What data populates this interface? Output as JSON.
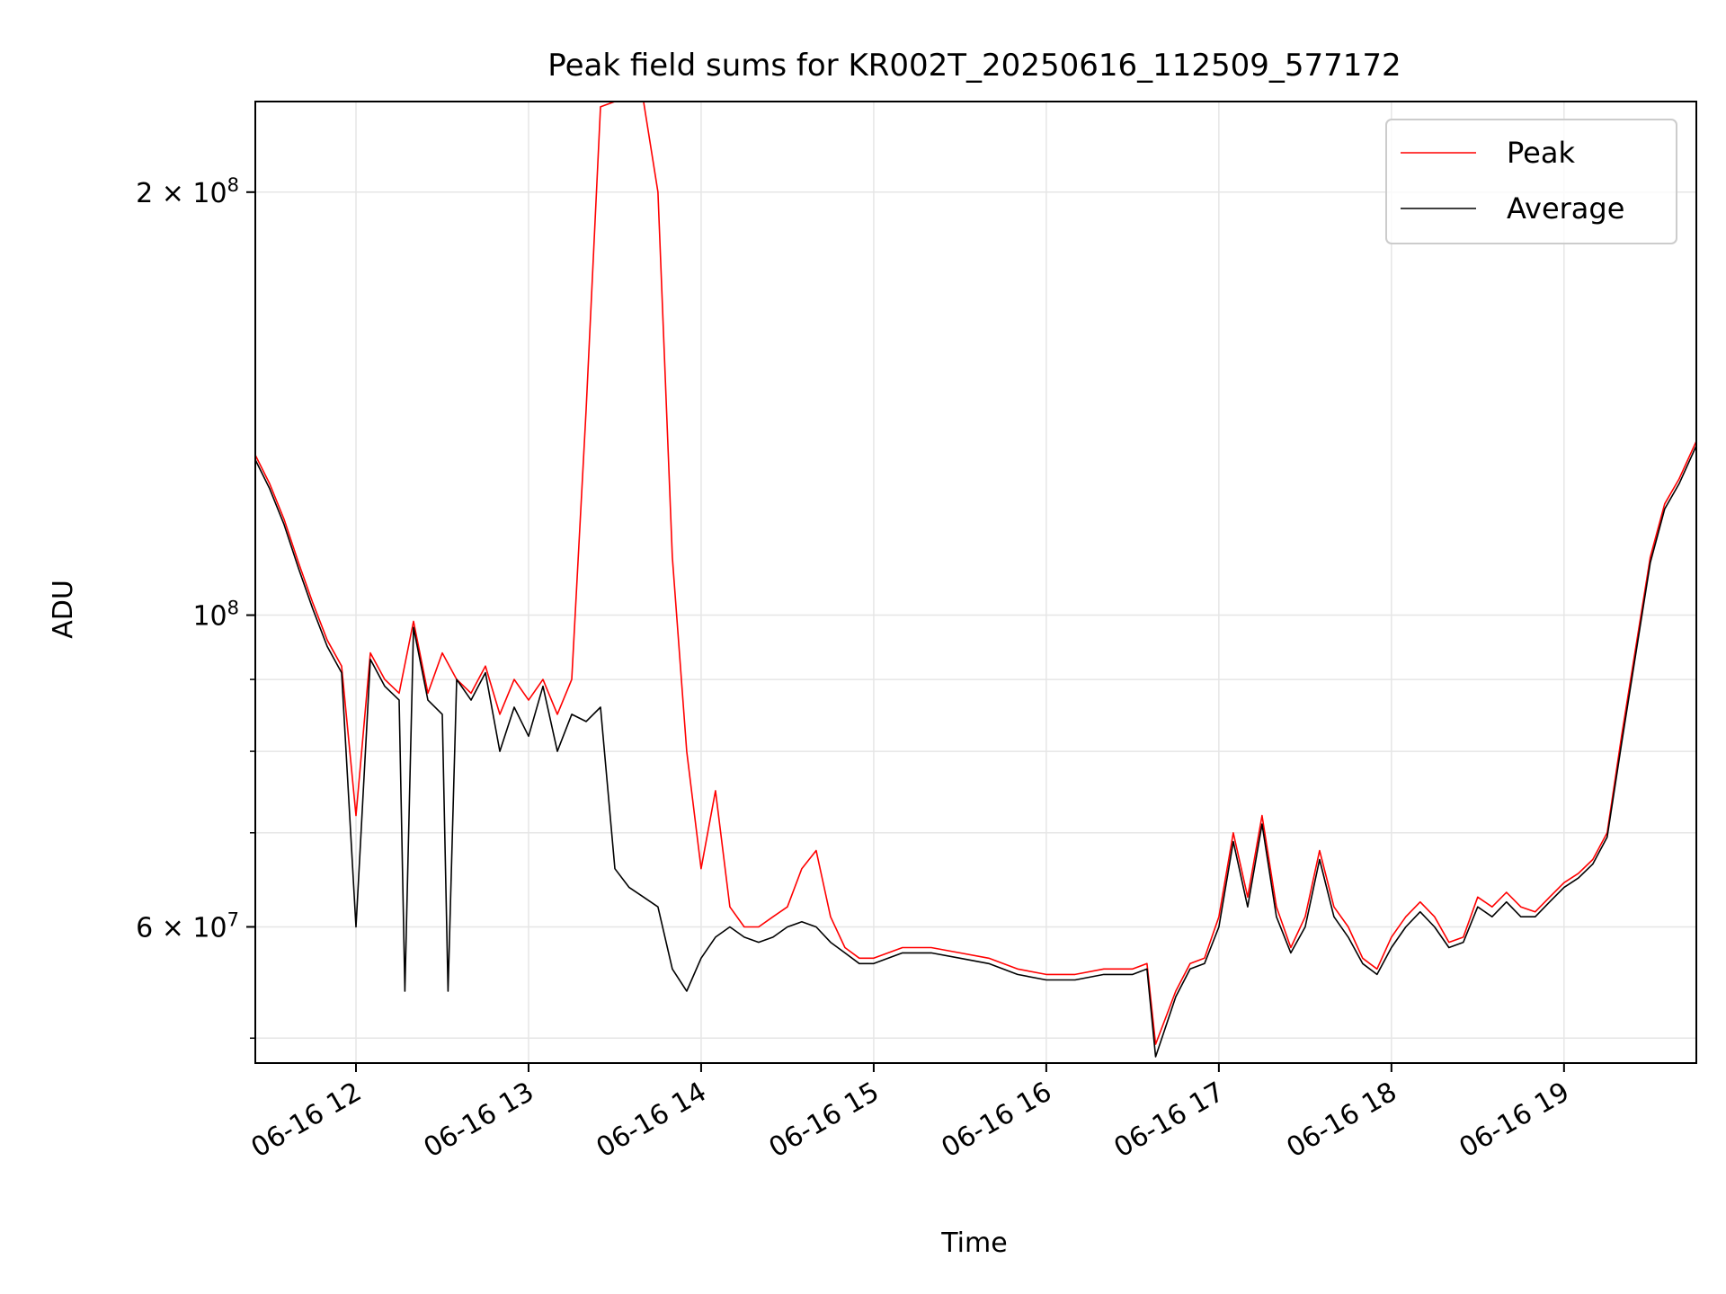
{
  "chart_data": {
    "type": "line",
    "title": "Peak field sums for KR002T_20250616_112509_577172",
    "xlabel": "Time",
    "ylabel": "ADU",
    "y_scale": "log",
    "x_range": [
      "2025-06-16 11:25",
      "2025-06-16 19:46"
    ],
    "y_range": [
      48000000,
      232000000
    ],
    "x_ticks": [
      {
        "value": "2025-06-16 12:00",
        "label": "06-16 12"
      },
      {
        "value": "2025-06-16 13:00",
        "label": "06-16 13"
      },
      {
        "value": "2025-06-16 14:00",
        "label": "06-16 14"
      },
      {
        "value": "2025-06-16 15:00",
        "label": "06-16 15"
      },
      {
        "value": "2025-06-16 16:00",
        "label": "06-16 16"
      },
      {
        "value": "2025-06-16 17:00",
        "label": "06-16 17"
      },
      {
        "value": "2025-06-16 18:00",
        "label": "06-16 18"
      },
      {
        "value": "2025-06-16 19:00",
        "label": "06-16 19"
      }
    ],
    "y_major_ticks": [
      {
        "value": 60000000,
        "base": "6",
        "exp": "7"
      },
      {
        "value": 100000000,
        "base": "",
        "exp": "8"
      },
      {
        "value": 200000000,
        "base": "2",
        "exp": "8"
      }
    ],
    "y_minor_ticks": [
      50000000,
      70000000,
      80000000,
      90000000
    ],
    "grid": true,
    "legend_position": "top-right",
    "series": [
      {
        "name": "Peak",
        "color": "#ff0000",
        "points": [
          [
            "2025-06-16 11:25",
            130000000
          ],
          [
            "2025-06-16 11:30",
            124000000
          ],
          [
            "2025-06-16 11:35",
            117000000
          ],
          [
            "2025-06-16 11:40",
            109000000
          ],
          [
            "2025-06-16 11:45",
            102000000
          ],
          [
            "2025-06-16 11:50",
            96000000
          ],
          [
            "2025-06-16 11:55",
            92000000
          ],
          [
            "2025-06-16 12:00",
            72000000
          ],
          [
            "2025-06-16 12:05",
            94000000
          ],
          [
            "2025-06-16 12:10",
            90000000
          ],
          [
            "2025-06-16 12:15",
            88000000
          ],
          [
            "2025-06-16 12:20",
            99000000
          ],
          [
            "2025-06-16 12:25",
            88000000
          ],
          [
            "2025-06-16 12:30",
            94000000
          ],
          [
            "2025-06-16 12:35",
            90000000
          ],
          [
            "2025-06-16 12:40",
            88000000
          ],
          [
            "2025-06-16 12:45",
            92000000
          ],
          [
            "2025-06-16 12:50",
            85000000
          ],
          [
            "2025-06-16 12:55",
            90000000
          ],
          [
            "2025-06-16 13:00",
            87000000
          ],
          [
            "2025-06-16 13:05",
            90000000
          ],
          [
            "2025-06-16 13:10",
            85000000
          ],
          [
            "2025-06-16 13:15",
            90000000
          ],
          [
            "2025-06-16 13:20",
            140000000
          ],
          [
            "2025-06-16 13:25",
            230000000
          ],
          [
            "2025-06-16 13:30",
            232000000
          ],
          [
            "2025-06-16 13:35",
            232000000
          ],
          [
            "2025-06-16 13:40",
            232000000
          ],
          [
            "2025-06-16 13:45",
            200000000
          ],
          [
            "2025-06-16 13:50",
            110000000
          ],
          [
            "2025-06-16 13:55",
            80000000
          ],
          [
            "2025-06-16 14:00",
            66000000
          ],
          [
            "2025-06-16 14:05",
            75000000
          ],
          [
            "2025-06-16 14:10",
            62000000
          ],
          [
            "2025-06-16 14:15",
            60000000
          ],
          [
            "2025-06-16 14:20",
            60000000
          ],
          [
            "2025-06-16 14:25",
            61000000
          ],
          [
            "2025-06-16 14:30",
            62000000
          ],
          [
            "2025-06-16 14:35",
            66000000
          ],
          [
            "2025-06-16 14:40",
            68000000
          ],
          [
            "2025-06-16 14:45",
            61000000
          ],
          [
            "2025-06-16 14:50",
            58000000
          ],
          [
            "2025-06-16 14:55",
            57000000
          ],
          [
            "2025-06-16 15:00",
            57000000
          ],
          [
            "2025-06-16 15:10",
            58000000
          ],
          [
            "2025-06-16 15:20",
            58000000
          ],
          [
            "2025-06-16 15:30",
            57500000
          ],
          [
            "2025-06-16 15:40",
            57000000
          ],
          [
            "2025-06-16 15:50",
            56000000
          ],
          [
            "2025-06-16 16:00",
            55500000
          ],
          [
            "2025-06-16 16:10",
            55500000
          ],
          [
            "2025-06-16 16:20",
            56000000
          ],
          [
            "2025-06-16 16:30",
            56000000
          ],
          [
            "2025-06-16 16:35",
            56500000
          ],
          [
            "2025-06-16 16:38",
            49500000
          ],
          [
            "2025-06-16 16:45",
            54000000
          ],
          [
            "2025-06-16 16:50",
            56500000
          ],
          [
            "2025-06-16 16:55",
            57000000
          ],
          [
            "2025-06-16 17:00",
            61000000
          ],
          [
            "2025-06-16 17:05",
            70000000
          ],
          [
            "2025-06-16 17:10",
            63000000
          ],
          [
            "2025-06-16 17:15",
            72000000
          ],
          [
            "2025-06-16 17:20",
            62000000
          ],
          [
            "2025-06-16 17:25",
            58000000
          ],
          [
            "2025-06-16 17:30",
            61000000
          ],
          [
            "2025-06-16 17:35",
            68000000
          ],
          [
            "2025-06-16 17:40",
            62000000
          ],
          [
            "2025-06-16 17:45",
            60000000
          ],
          [
            "2025-06-16 17:50",
            57000000
          ],
          [
            "2025-06-16 17:55",
            56000000
          ],
          [
            "2025-06-16 18:00",
            59000000
          ],
          [
            "2025-06-16 18:05",
            61000000
          ],
          [
            "2025-06-16 18:10",
            62500000
          ],
          [
            "2025-06-16 18:15",
            61000000
          ],
          [
            "2025-06-16 18:20",
            58500000
          ],
          [
            "2025-06-16 18:25",
            59000000
          ],
          [
            "2025-06-16 18:30",
            63000000
          ],
          [
            "2025-06-16 18:35",
            62000000
          ],
          [
            "2025-06-16 18:40",
            63500000
          ],
          [
            "2025-06-16 18:45",
            62000000
          ],
          [
            "2025-06-16 18:50",
            61500000
          ],
          [
            "2025-06-16 18:55",
            63000000
          ],
          [
            "2025-06-16 19:00",
            64500000
          ],
          [
            "2025-06-16 19:05",
            65500000
          ],
          [
            "2025-06-16 19:10",
            67000000
          ],
          [
            "2025-06-16 19:15",
            70000000
          ],
          [
            "2025-06-16 19:20",
            82000000
          ],
          [
            "2025-06-16 19:25",
            95000000
          ],
          [
            "2025-06-16 19:30",
            110000000
          ],
          [
            "2025-06-16 19:35",
            120000000
          ],
          [
            "2025-06-16 19:40",
            125000000
          ],
          [
            "2025-06-16 19:46",
            133000000
          ]
        ]
      },
      {
        "name": "Average",
        "color": "#000000",
        "points": [
          [
            "2025-06-16 11:25",
            129000000
          ],
          [
            "2025-06-16 11:30",
            123000000
          ],
          [
            "2025-06-16 11:35",
            116000000
          ],
          [
            "2025-06-16 11:40",
            108000000
          ],
          [
            "2025-06-16 11:45",
            101000000
          ],
          [
            "2025-06-16 11:50",
            95000000
          ],
          [
            "2025-06-16 11:55",
            91000000
          ],
          [
            "2025-06-16 12:00",
            60000000
          ],
          [
            "2025-06-16 12:05",
            93000000
          ],
          [
            "2025-06-16 12:10",
            89000000
          ],
          [
            "2025-06-16 12:15",
            87000000
          ],
          [
            "2025-06-16 12:17",
            54000000
          ],
          [
            "2025-06-16 12:20",
            98000000
          ],
          [
            "2025-06-16 12:25",
            87000000
          ],
          [
            "2025-06-16 12:30",
            85000000
          ],
          [
            "2025-06-16 12:32",
            54000000
          ],
          [
            "2025-06-16 12:35",
            90000000
          ],
          [
            "2025-06-16 12:40",
            87000000
          ],
          [
            "2025-06-16 12:45",
            91000000
          ],
          [
            "2025-06-16 12:50",
            80000000
          ],
          [
            "2025-06-16 12:55",
            86000000
          ],
          [
            "2025-06-16 13:00",
            82000000
          ],
          [
            "2025-06-16 13:05",
            89000000
          ],
          [
            "2025-06-16 13:10",
            80000000
          ],
          [
            "2025-06-16 13:15",
            85000000
          ],
          [
            "2025-06-16 13:20",
            84000000
          ],
          [
            "2025-06-16 13:25",
            86000000
          ],
          [
            "2025-06-16 13:30",
            66000000
          ],
          [
            "2025-06-16 13:35",
            64000000
          ],
          [
            "2025-06-16 13:40",
            63000000
          ],
          [
            "2025-06-16 13:45",
            62000000
          ],
          [
            "2025-06-16 13:50",
            56000000
          ],
          [
            "2025-06-16 13:55",
            54000000
          ],
          [
            "2025-06-16 14:00",
            57000000
          ],
          [
            "2025-06-16 14:05",
            59000000
          ],
          [
            "2025-06-16 14:10",
            60000000
          ],
          [
            "2025-06-16 14:15",
            59000000
          ],
          [
            "2025-06-16 14:20",
            58500000
          ],
          [
            "2025-06-16 14:25",
            59000000
          ],
          [
            "2025-06-16 14:30",
            60000000
          ],
          [
            "2025-06-16 14:35",
            60500000
          ],
          [
            "2025-06-16 14:40",
            60000000
          ],
          [
            "2025-06-16 14:45",
            58500000
          ],
          [
            "2025-06-16 14:50",
            57500000
          ],
          [
            "2025-06-16 14:55",
            56500000
          ],
          [
            "2025-06-16 15:00",
            56500000
          ],
          [
            "2025-06-16 15:10",
            57500000
          ],
          [
            "2025-06-16 15:20",
            57500000
          ],
          [
            "2025-06-16 15:30",
            57000000
          ],
          [
            "2025-06-16 15:40",
            56500000
          ],
          [
            "2025-06-16 15:50",
            55500000
          ],
          [
            "2025-06-16 16:00",
            55000000
          ],
          [
            "2025-06-16 16:10",
            55000000
          ],
          [
            "2025-06-16 16:20",
            55500000
          ],
          [
            "2025-06-16 16:30",
            55500000
          ],
          [
            "2025-06-16 16:35",
            56000000
          ],
          [
            "2025-06-16 16:38",
            48500000
          ],
          [
            "2025-06-16 16:45",
            53500000
          ],
          [
            "2025-06-16 16:50",
            56000000
          ],
          [
            "2025-06-16 16:55",
            56500000
          ],
          [
            "2025-06-16 17:00",
            60000000
          ],
          [
            "2025-06-16 17:05",
            69000000
          ],
          [
            "2025-06-16 17:10",
            62000000
          ],
          [
            "2025-06-16 17:15",
            71000000
          ],
          [
            "2025-06-16 17:20",
            61000000
          ],
          [
            "2025-06-16 17:25",
            57500000
          ],
          [
            "2025-06-16 17:30",
            60000000
          ],
          [
            "2025-06-16 17:35",
            67000000
          ],
          [
            "2025-06-16 17:40",
            61000000
          ],
          [
            "2025-06-16 17:45",
            59000000
          ],
          [
            "2025-06-16 17:50",
            56500000
          ],
          [
            "2025-06-16 17:55",
            55500000
          ],
          [
            "2025-06-16 18:00",
            58000000
          ],
          [
            "2025-06-16 18:05",
            60000000
          ],
          [
            "2025-06-16 18:10",
            61500000
          ],
          [
            "2025-06-16 18:15",
            60000000
          ],
          [
            "2025-06-16 18:20",
            58000000
          ],
          [
            "2025-06-16 18:25",
            58500000
          ],
          [
            "2025-06-16 18:30",
            62000000
          ],
          [
            "2025-06-16 18:35",
            61000000
          ],
          [
            "2025-06-16 18:40",
            62500000
          ],
          [
            "2025-06-16 18:45",
            61000000
          ],
          [
            "2025-06-16 18:50",
            61000000
          ],
          [
            "2025-06-16 18:55",
            62500000
          ],
          [
            "2025-06-16 19:00",
            64000000
          ],
          [
            "2025-06-16 19:05",
            65000000
          ],
          [
            "2025-06-16 19:10",
            66500000
          ],
          [
            "2025-06-16 19:15",
            69500000
          ],
          [
            "2025-06-16 19:20",
            81000000
          ],
          [
            "2025-06-16 19:25",
            94000000
          ],
          [
            "2025-06-16 19:30",
            109000000
          ],
          [
            "2025-06-16 19:35",
            119000000
          ],
          [
            "2025-06-16 19:40",
            124000000
          ],
          [
            "2025-06-16 19:46",
            132000000
          ]
        ]
      }
    ]
  }
}
